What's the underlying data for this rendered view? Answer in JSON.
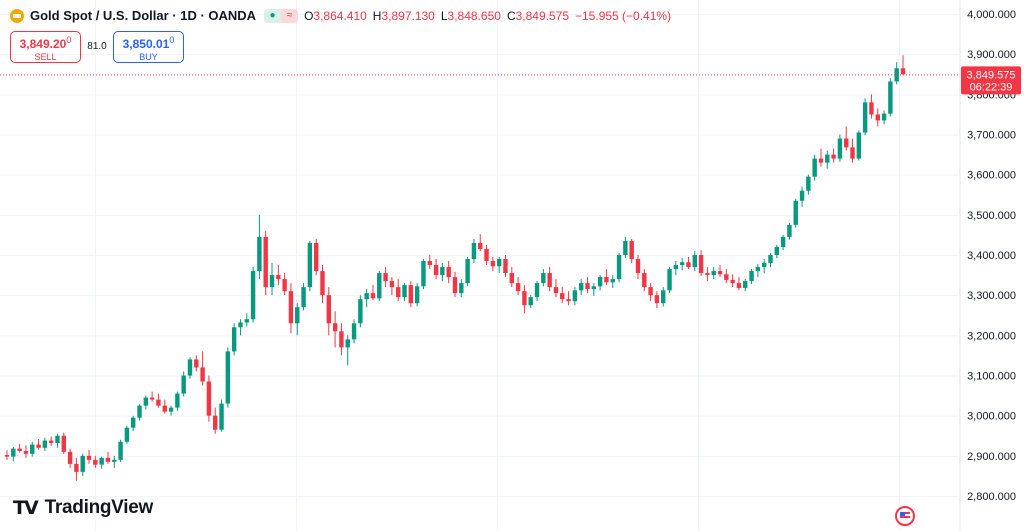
{
  "header": {
    "symbol": "Gold Spot / U.S. Dollar · 1D · OANDA",
    "open_label": "O",
    "open": "3,864.410",
    "high_label": "H",
    "high": "3,897.130",
    "low_label": "L",
    "low": "3,848.650",
    "close_label": "C",
    "close": "3,849.575",
    "change": "−15.955 (−0.41%)"
  },
  "trade": {
    "sell_price": "3,849.20",
    "sell_sup": "0",
    "sell_label": "SELL",
    "spread": "81.0",
    "buy_price": "3,850.01",
    "buy_sup": "0",
    "buy_label": "BUY"
  },
  "price_tag": {
    "price": "3,849.575",
    "countdown": "06:22:39",
    "value": 3849.575
  },
  "brand": {
    "mark": "TV",
    "name": "TradingView"
  },
  "colors": {
    "up": "#089981",
    "down": "#f23645",
    "grid": "#f0f3fa",
    "axis_text": "#131722"
  },
  "chart_data": {
    "type": "candlestick",
    "yaxis_labels": [
      "4,000.000",
      "3,900.000",
      "3,800.000",
      "3,700.000",
      "3,600.000",
      "3,500.000",
      "3,400.000",
      "3,300.000",
      "3,200.000",
      "3,100.000",
      "3,000.000",
      "2,900.000",
      "2,800.000"
    ],
    "ylim": [
      2800,
      4000
    ],
    "grid": true,
    "candles": [
      [
        2902,
        2914,
        2890,
        2898
      ],
      [
        2898,
        2922,
        2886,
        2918
      ],
      [
        2918,
        2930,
        2908,
        2912
      ],
      [
        2912,
        2926,
        2895,
        2905
      ],
      [
        2905,
        2935,
        2898,
        2928
      ],
      [
        2928,
        2942,
        2915,
        2920
      ],
      [
        2920,
        2945,
        2912,
        2938
      ],
      [
        2938,
        2948,
        2925,
        2932
      ],
      [
        2932,
        2955,
        2920,
        2950
      ],
      [
        2950,
        2958,
        2905,
        2910
      ],
      [
        2910,
        2918,
        2870,
        2880
      ],
      [
        2880,
        2895,
        2838,
        2860
      ],
      [
        2860,
        2905,
        2850,
        2900
      ],
      [
        2900,
        2915,
        2880,
        2890
      ],
      [
        2890,
        2900,
        2870,
        2878
      ],
      [
        2878,
        2898,
        2868,
        2895
      ],
      [
        2895,
        2910,
        2880,
        2885
      ],
      [
        2885,
        2900,
        2870,
        2890
      ],
      [
        2890,
        2940,
        2885,
        2935
      ],
      [
        2935,
        2975,
        2930,
        2970
      ],
      [
        2970,
        3000,
        2962,
        2995
      ],
      [
        2995,
        3028,
        2988,
        3025
      ],
      [
        3025,
        3050,
        3015,
        3045
      ],
      [
        3045,
        3060,
        3035,
        3040
      ],
      [
        3040,
        3055,
        3020,
        3025
      ],
      [
        3025,
        3040,
        3005,
        3010
      ],
      [
        3010,
        3025,
        3000,
        3020
      ],
      [
        3020,
        3060,
        3012,
        3055
      ],
      [
        3055,
        3110,
        3048,
        3100
      ],
      [
        3100,
        3145,
        3092,
        3140
      ],
      [
        3140,
        3150,
        3110,
        3120
      ],
      [
        3120,
        3160,
        3075,
        3085
      ],
      [
        3085,
        3100,
        2985,
        3000
      ],
      [
        3000,
        3020,
        2955,
        2965
      ],
      [
        2965,
        3040,
        2960,
        3030
      ],
      [
        3030,
        3170,
        3020,
        3160
      ],
      [
        3160,
        3230,
        3150,
        3220
      ],
      [
        3220,
        3240,
        3200,
        3232
      ],
      [
        3232,
        3255,
        3222,
        3240
      ],
      [
        3240,
        3370,
        3232,
        3360
      ],
      [
        3360,
        3500,
        3340,
        3445
      ],
      [
        3445,
        3460,
        3300,
        3320
      ],
      [
        3320,
        3380,
        3300,
        3350
      ],
      [
        3350,
        3375,
        3325,
        3340
      ],
      [
        3340,
        3355,
        3300,
        3310
      ],
      [
        3310,
        3330,
        3205,
        3230
      ],
      [
        3230,
        3280,
        3200,
        3270
      ],
      [
        3270,
        3330,
        3262,
        3320
      ],
      [
        3320,
        3435,
        3310,
        3430
      ],
      [
        3430,
        3440,
        3350,
        3360
      ],
      [
        3360,
        3375,
        3280,
        3300
      ],
      [
        3300,
        3320,
        3200,
        3230
      ],
      [
        3230,
        3260,
        3170,
        3210
      ],
      [
        3210,
        3230,
        3150,
        3170
      ],
      [
        3170,
        3200,
        3125,
        3190
      ],
      [
        3190,
        3240,
        3180,
        3230
      ],
      [
        3230,
        3300,
        3220,
        3290
      ],
      [
        3290,
        3315,
        3270,
        3305
      ],
      [
        3305,
        3325,
        3288,
        3292
      ],
      [
        3292,
        3360,
        3285,
        3355
      ],
      [
        3355,
        3370,
        3320,
        3335
      ],
      [
        3335,
        3345,
        3300,
        3320
      ],
      [
        3320,
        3340,
        3285,
        3295
      ],
      [
        3295,
        3330,
        3285,
        3325
      ],
      [
        3325,
        3335,
        3270,
        3280
      ],
      [
        3280,
        3330,
        3272,
        3322
      ],
      [
        3322,
        3390,
        3315,
        3385
      ],
      [
        3385,
        3400,
        3365,
        3375
      ],
      [
        3375,
        3390,
        3340,
        3350
      ],
      [
        3350,
        3380,
        3335,
        3370
      ],
      [
        3370,
        3385,
        3330,
        3345
      ],
      [
        3345,
        3358,
        3295,
        3305
      ],
      [
        3305,
        3340,
        3295,
        3330
      ],
      [
        3330,
        3395,
        3322,
        3390
      ],
      [
        3390,
        3440,
        3380,
        3430
      ],
      [
        3430,
        3452,
        3410,
        3415
      ],
      [
        3415,
        3425,
        3375,
        3385
      ],
      [
        3385,
        3395,
        3360,
        3372
      ],
      [
        3372,
        3395,
        3355,
        3390
      ],
      [
        3390,
        3400,
        3345,
        3355
      ],
      [
        3355,
        3370,
        3320,
        3330
      ],
      [
        3330,
        3345,
        3300,
        3310
      ],
      [
        3310,
        3325,
        3255,
        3275
      ],
      [
        3275,
        3300,
        3268,
        3295
      ],
      [
        3295,
        3335,
        3285,
        3330
      ],
      [
        3330,
        3365,
        3322,
        3355
      ],
      [
        3355,
        3370,
        3310,
        3320
      ],
      [
        3320,
        3340,
        3295,
        3305
      ],
      [
        3305,
        3320,
        3280,
        3290
      ],
      [
        3290,
        3310,
        3275,
        3285
      ],
      [
        3285,
        3320,
        3275,
        3312
      ],
      [
        3312,
        3340,
        3300,
        3330
      ],
      [
        3330,
        3345,
        3305,
        3315
      ],
      [
        3315,
        3330,
        3298,
        3322
      ],
      [
        3322,
        3350,
        3312,
        3345
      ],
      [
        3345,
        3365,
        3325,
        3332
      ],
      [
        3332,
        3350,
        3318,
        3340
      ],
      [
        3340,
        3405,
        3332,
        3400
      ],
      [
        3400,
        3445,
        3392,
        3435
      ],
      [
        3435,
        3440,
        3380,
        3390
      ],
      [
        3390,
        3400,
        3340,
        3355
      ],
      [
        3355,
        3365,
        3310,
        3320
      ],
      [
        3320,
        3330,
        3285,
        3300
      ],
      [
        3300,
        3310,
        3268,
        3280
      ],
      [
        3280,
        3320,
        3272,
        3312
      ],
      [
        3312,
        3370,
        3305,
        3365
      ],
      [
        3365,
        3385,
        3350,
        3375
      ],
      [
        3375,
        3392,
        3362,
        3382
      ],
      [
        3382,
        3395,
        3365,
        3370
      ],
      [
        3370,
        3410,
        3360,
        3400
      ],
      [
        3400,
        3412,
        3348,
        3355
      ],
      [
        3355,
        3370,
        3335,
        3350
      ],
      [
        3350,
        3370,
        3340,
        3360
      ],
      [
        3360,
        3375,
        3345,
        3352
      ],
      [
        3352,
        3365,
        3330,
        3338
      ],
      [
        3338,
        3352,
        3320,
        3330
      ],
      [
        3330,
        3345,
        3312,
        3318
      ],
      [
        3318,
        3340,
        3310,
        3335
      ],
      [
        3335,
        3365,
        3328,
        3360
      ],
      [
        3360,
        3378,
        3345,
        3370
      ],
      [
        3370,
        3390,
        3355,
        3380
      ],
      [
        3380,
        3405,
        3370,
        3400
      ],
      [
        3400,
        3425,
        3392,
        3420
      ],
      [
        3420,
        3450,
        3412,
        3445
      ],
      [
        3445,
        3480,
        3438,
        3475
      ],
      [
        3475,
        3540,
        3468,
        3535
      ],
      [
        3535,
        3570,
        3520,
        3560
      ],
      [
        3560,
        3600,
        3550,
        3595
      ],
      [
        3595,
        3650,
        3585,
        3640
      ],
      [
        3640,
        3665,
        3620,
        3630
      ],
      [
        3630,
        3660,
        3615,
        3650
      ],
      [
        3650,
        3665,
        3630,
        3640
      ],
      [
        3640,
        3700,
        3632,
        3690
      ],
      [
        3690,
        3720,
        3660,
        3668
      ],
      [
        3668,
        3690,
        3630,
        3640
      ],
      [
        3640,
        3710,
        3635,
        3705
      ],
      [
        3705,
        3790,
        3698,
        3780
      ],
      [
        3780,
        3800,
        3740,
        3750
      ],
      [
        3750,
        3765,
        3720,
        3735
      ],
      [
        3735,
        3760,
        3725,
        3752
      ],
      [
        3752,
        3840,
        3745,
        3832
      ],
      [
        3832,
        3880,
        3825,
        3865
      ],
      [
        3865,
        3897,
        3848,
        3850
      ]
    ]
  }
}
